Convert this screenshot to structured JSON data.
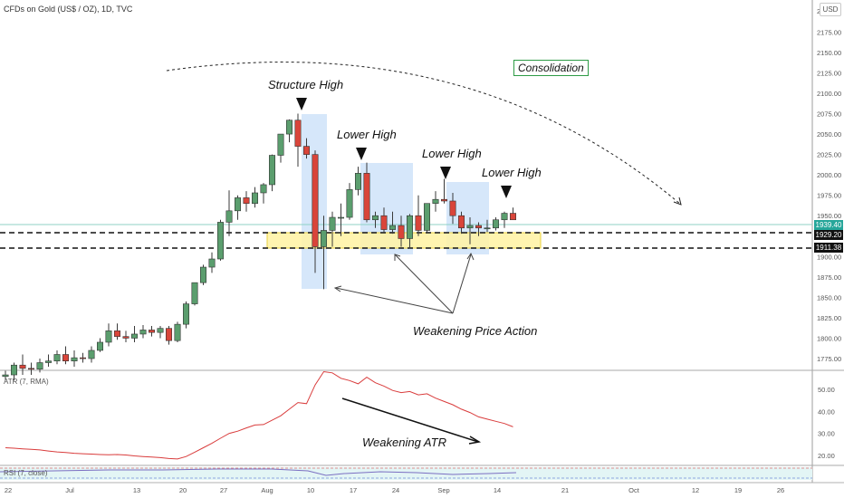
{
  "header": {
    "title": "CFDs on Gold (US$ / OZ), 1D, TVC",
    "currency_button": "USD"
  },
  "price_axis": {
    "labels": [
      "2175.00",
      "2150.00",
      "2125.00",
      "2100.00",
      "2075.00",
      "2050.00",
      "2025.00",
      "2000.00",
      "1975.00",
      "1950.00",
      "1925.00",
      "1900.00",
      "1875.00",
      "1850.00",
      "1825.00",
      "1800.00",
      "1775.00"
    ],
    "top_partial_label": "2"
  },
  "price_tags": {
    "last_price": "1939.40",
    "level_1": "1929.20",
    "level_2": "1911.38"
  },
  "atr_axis": {
    "labels": [
      "50.00",
      "40.00",
      "30.00",
      "20.00"
    ]
  },
  "time_axis": {
    "labels": [
      "22",
      "Jul",
      "13",
      "20",
      "27",
      "Aug",
      "10",
      "17",
      "24",
      "Sep",
      "14",
      "21",
      "Oct",
      "12",
      "19",
      "26"
    ]
  },
  "indicators": {
    "atr_label": "ATR (7, RMA)",
    "rsi_label": "RSI (7, close)"
  },
  "annotations": {
    "structure_high": "Structure High",
    "lower_high_1": "Lower High",
    "lower_high_2": "Lower High",
    "lower_high_3": "Lower High",
    "consolidation": "Consolidation",
    "weakening_price_action": "Weakening Price Action",
    "weakening_atr": "Weakening ATR"
  },
  "colors": {
    "bull": "#5b9e6e",
    "bear": "#d9453a",
    "atr_line": "#d93c3c",
    "zone_yellow": "#fff3a8",
    "box_blue": "#cfe3f9",
    "last_price_bg": "#26a69a"
  },
  "chart_data": {
    "type": "candlestick",
    "title": "CFDs on Gold (US$ / OZ), 1D, TVC",
    "x": [
      "Jun 22",
      "Jun 23",
      "Jun 24",
      "Jun 25",
      "Jun 26",
      "Jun 29",
      "Jun 30",
      "Jul 1",
      "Jul 2",
      "Jul 3",
      "Jul 6",
      "Jul 7",
      "Jul 8",
      "Jul 9",
      "Jul 10",
      "Jul 13",
      "Jul 14",
      "Jul 15",
      "Jul 16",
      "Jul 17",
      "Jul 20",
      "Jul 21",
      "Jul 22",
      "Jul 23",
      "Jul 24",
      "Jul 27",
      "Jul 28",
      "Jul 29",
      "Jul 30",
      "Jul 31",
      "Aug 3",
      "Aug 4",
      "Aug 5",
      "Aug 6",
      "Aug 7",
      "Aug 10",
      "Aug 11",
      "Aug 12",
      "Aug 13",
      "Aug 14",
      "Aug 17",
      "Aug 18",
      "Aug 19",
      "Aug 20",
      "Aug 21",
      "Aug 24",
      "Aug 25",
      "Aug 26",
      "Aug 27",
      "Aug 28",
      "Aug 31",
      "Sep 1",
      "Sep 2",
      "Sep 3",
      "Sep 4",
      "Sep 7",
      "Sep 8",
      "Sep 9",
      "Sep 10",
      "Sep 11"
    ],
    "open": [
      1753,
      1755,
      1767,
      1763,
      1762,
      1770,
      1772,
      1780,
      1772,
      1776,
      1775,
      1785,
      1795,
      1809,
      1802,
      1800,
      1805,
      1810,
      1807,
      1812,
      1797,
      1817,
      1842,
      1868,
      1887,
      1897,
      1942,
      1956,
      1972,
      1965,
      1978,
      1988,
      2024,
      2050,
      2067,
      2035,
      2025,
      1912,
      1932,
      1948,
      1948,
      1982,
      2002,
      1945,
      1950,
      1933,
      1938,
      1922,
      1950,
      1932,
      1965,
      1970,
      1968,
      1950,
      1935,
      1938,
      1935,
      1935,
      1945,
      1953
    ],
    "high": [
      1760,
      1770,
      1780,
      1770,
      1775,
      1780,
      1785,
      1790,
      1785,
      1782,
      1790,
      1800,
      1818,
      1818,
      1809,
      1815,
      1816,
      1815,
      1815,
      1815,
      1820,
      1845,
      1868,
      1890,
      1905,
      1945,
      1981,
      1975,
      1980,
      1985,
      1990,
      2025,
      2050,
      2068,
      2075,
      2045,
      2030,
      1950,
      1955,
      1965,
      1990,
      2010,
      2015,
      1955,
      1960,
      1955,
      1950,
      1952,
      1975,
      1965,
      1980,
      1995,
      1978,
      1955,
      1948,
      1942,
      1945,
      1948,
      1955,
      1960
    ],
    "low": [
      1748,
      1748,
      1755,
      1755,
      1758,
      1765,
      1768,
      1768,
      1765,
      1770,
      1770,
      1783,
      1790,
      1798,
      1795,
      1795,
      1800,
      1802,
      1800,
      1792,
      1795,
      1812,
      1840,
      1865,
      1880,
      1895,
      1925,
      1945,
      1955,
      1960,
      1965,
      1980,
      2015,
      2040,
      2010,
      2020,
      1880,
      1860,
      1912,
      1925,
      1945,
      1975,
      1942,
      1935,
      1930,
      1928,
      1912,
      1910,
      1925,
      1930,
      1955,
      1965,
      1940,
      1928,
      1915,
      1925,
      1930,
      1932,
      1935,
      1945
    ],
    "close": [
      1755,
      1767,
      1763,
      1762,
      1770,
      1772,
      1780,
      1772,
      1776,
      1775,
      1785,
      1795,
      1809,
      1802,
      1800,
      1805,
      1810,
      1807,
      1812,
      1797,
      1817,
      1842,
      1868,
      1887,
      1897,
      1942,
      1956,
      1972,
      1965,
      1978,
      1988,
      2024,
      2050,
      2067,
      2035,
      2025,
      1912,
      1932,
      1948,
      1948,
      1982,
      2002,
      1945,
      1950,
      1933,
      1938,
      1922,
      1950,
      1932,
      1965,
      1970,
      1968,
      1950,
      1935,
      1938,
      1935,
      1935,
      1945,
      1953,
      1945
    ],
    "ylim": [
      1755,
      2190
    ],
    "levels": [
      1929.2,
      1911.38
    ],
    "last_price": 1939.4,
    "atr": {
      "name": "ATR (7, RMA)",
      "values": [
        23.5,
        23.3,
        23.0,
        22.8,
        22.5,
        22.0,
        21.6,
        21.3,
        21.0,
        20.8,
        20.6,
        20.4,
        20.3,
        20.4,
        20.2,
        19.8,
        19.5,
        19.3,
        19.0,
        18.6,
        18.4,
        19.5,
        21.5,
        23.5,
        25.5,
        27.8,
        30.0,
        31.0,
        32.5,
        33.8,
        34.0,
        36.0,
        38.0,
        41.0,
        44.0,
        43.5,
        52.0,
        58.0,
        57.5,
        55.0,
        54.0,
        52.5,
        55.5,
        53.0,
        51.5,
        49.5,
        48.5,
        49.0,
        47.5,
        48.0,
        46.0,
        44.5,
        43.0,
        41.0,
        39.5,
        37.5,
        36.5,
        35.5,
        34.5,
        33.0
      ],
      "ylim": [
        15,
        60
      ]
    }
  }
}
